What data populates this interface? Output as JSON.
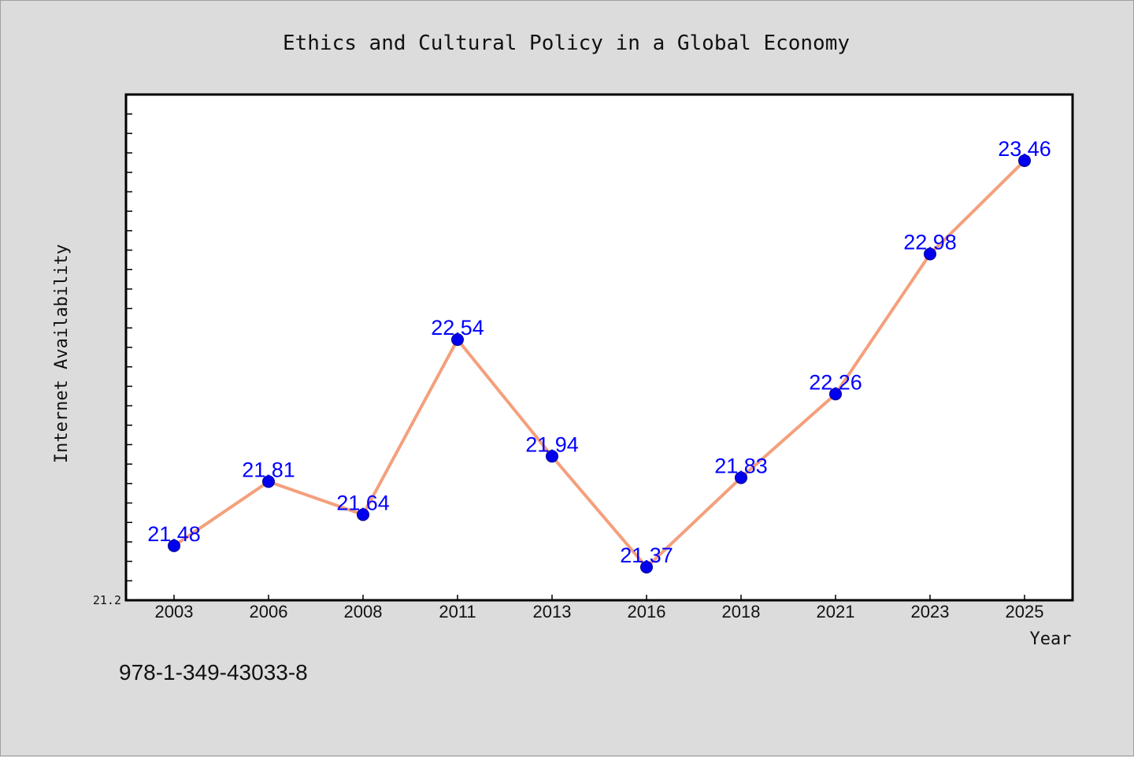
{
  "chart_data": {
    "type": "line",
    "title": "Ethics and Cultural Policy in a Global Economy",
    "xlabel": "Year",
    "ylabel": "Internet Availability",
    "categories": [
      "2003",
      "2006",
      "2008",
      "2011",
      "2013",
      "2016",
      "2018",
      "2021",
      "2023",
      "2025"
    ],
    "values": [
      21.48,
      21.81,
      21.64,
      22.54,
      21.94,
      21.37,
      21.83,
      22.26,
      22.98,
      23.46
    ],
    "data_labels": [
      "21.48",
      "21.81",
      "21.64",
      "22.54",
      "21.94",
      "21.37",
      "21.83",
      "22.26",
      "22.98",
      "23.46"
    ],
    "ylim": [
      21.2,
      23.8
    ],
    "y_tick_labels": [
      "21.2"
    ],
    "y_minor_tick_step": 0.1,
    "grid": false,
    "line_color": "#f4a07c",
    "marker_color": "#0000ee",
    "label_color": "#0000ff",
    "background_color": "#dcdcdc",
    "plot_background_color": "#ffffff"
  },
  "footer": {
    "isbn": "978-1-349-43033-8"
  }
}
